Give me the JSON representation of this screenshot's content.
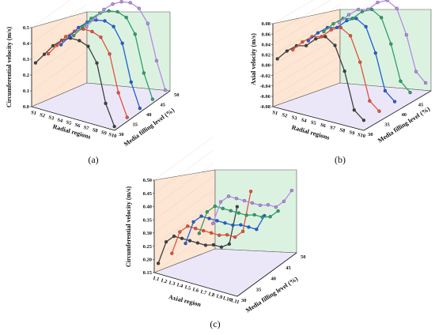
{
  "chart_data": [
    {
      "type": "line",
      "panel_label": "(a)",
      "zlabel": "Circumferential velocity (m/s)",
      "xlabel": "Radial regions",
      "ylabel": "Media filling level (%)",
      "x_ticks": [
        "S1",
        "S2",
        "S3",
        "S4",
        "S5",
        "S6",
        "S7",
        "S8",
        "S9",
        "S10"
      ],
      "y_ticks": [
        "30",
        "35",
        "40",
        "45",
        "50"
      ],
      "z_ticks": [
        "0.0",
        "0.1",
        "0.2",
        "0.3",
        "0.4",
        "0.5"
      ],
      "zlim": [
        0,
        0.5
      ],
      "series": [
        {
          "name": "30",
          "color": "#404040",
          "values": [
            0.27,
            0.34,
            0.41,
            0.46,
            0.49,
            0.49,
            0.47,
            0.38,
            0.14,
            0.01
          ]
        },
        {
          "name": "35",
          "color": "#e8503a",
          "values": [
            0.27,
            0.34,
            0.41,
            0.46,
            0.49,
            0.49,
            0.47,
            0.38,
            0.15,
            0.01
          ]
        },
        {
          "name": "40",
          "color": "#1f5fd6",
          "values": [
            0.27,
            0.34,
            0.41,
            0.46,
            0.49,
            0.5,
            0.48,
            0.39,
            0.16,
            0.01
          ]
        },
        {
          "name": "45",
          "color": "#2ea06a",
          "values": [
            0.27,
            0.34,
            0.41,
            0.46,
            0.49,
            0.5,
            0.48,
            0.39,
            0.16,
            0.01
          ]
        },
        {
          "name": "50",
          "color": "#b58be6",
          "values": [
            0.27,
            0.34,
            0.41,
            0.46,
            0.49,
            0.5,
            0.48,
            0.4,
            0.18,
            0.01
          ]
        }
      ]
    },
    {
      "type": "line",
      "panel_label": "(b)",
      "zlabel": "Axial velocity (m/s)",
      "xlabel": "Radial regions",
      "ylabel": "Media filling level (%)",
      "x_ticks": [
        "S1",
        "S2",
        "S3",
        "S4",
        "S5",
        "S6",
        "S7",
        "S8",
        "S9",
        "S10"
      ],
      "y_ticks": [
        "30",
        "35",
        "40",
        "45",
        "50"
      ],
      "z_ticks": [
        "-0.08",
        "-0.06",
        "-0.04",
        "-0.02",
        "0.00",
        "0.02",
        "0.04",
        "0.06",
        "0.08"
      ],
      "zlim": [
        -0.08,
        0.08
      ],
      "series": [
        {
          "name": "30",
          "color": "#404040",
          "values": [
            0.01,
            0.03,
            0.045,
            0.05,
            0.068,
            0.077,
            0.065,
            0.02,
            -0.05,
            -0.065
          ]
        },
        {
          "name": "35",
          "color": "#e8503a",
          "values": [
            0.01,
            0.03,
            0.045,
            0.05,
            0.068,
            0.077,
            0.066,
            0.02,
            -0.05,
            -0.065
          ]
        },
        {
          "name": "40",
          "color": "#1f5fd6",
          "values": [
            0.01,
            0.03,
            0.045,
            0.05,
            0.068,
            0.077,
            0.066,
            0.02,
            -0.048,
            -0.064
          ]
        },
        {
          "name": "45",
          "color": "#2ea06a",
          "values": [
            0.01,
            0.03,
            0.045,
            0.05,
            0.068,
            0.077,
            0.066,
            0.02,
            -0.047,
            -0.064
          ]
        },
        {
          "name": "50",
          "color": "#b58be6",
          "values": [
            0.01,
            0.03,
            0.045,
            0.05,
            0.068,
            0.077,
            0.066,
            0.02,
            -0.046,
            -0.063
          ]
        }
      ]
    },
    {
      "type": "line",
      "panel_label": "(c)",
      "zlabel": "Circumferential velocity (m/s)",
      "xlabel": "Axial region",
      "ylabel": "Media filling level (%)",
      "x_ticks": [
        "L1",
        "L2",
        "L3",
        "L4",
        "L5",
        "L6",
        "L7",
        "L8",
        "L9",
        "L10",
        "L11"
      ],
      "y_ticks": [
        "30",
        "35",
        "40",
        "45",
        "50"
      ],
      "z_ticks": [
        "0.15",
        "0.20",
        "0.25",
        "0.30",
        "0.35",
        "0.40",
        "0.45",
        "0.50"
      ],
      "zlim": [
        0.15,
        0.5
      ],
      "series": [
        {
          "name": "30",
          "color": "#404040",
          "values": [
            0.18,
            0.27,
            0.3,
            0.3,
            0.3,
            0.3,
            0.3,
            0.31,
            0.31,
            0.33,
            0.48
          ]
        },
        {
          "name": "35",
          "color": "#e8503a",
          "values": [
            0.18,
            0.27,
            0.3,
            0.3,
            0.3,
            0.3,
            0.3,
            0.31,
            0.31,
            0.34,
            0.5
          ]
        },
        {
          "name": "40",
          "color": "#1f5fd6",
          "values": [
            0.18,
            0.27,
            0.3,
            0.3,
            0.3,
            0.3,
            0.3,
            0.31,
            0.31,
            0.31,
            0.37
          ]
        },
        {
          "name": "45",
          "color": "#2ea06a",
          "values": [
            0.18,
            0.27,
            0.3,
            0.3,
            0.3,
            0.3,
            0.3,
            0.31,
            0.31,
            0.32,
            0.35
          ]
        },
        {
          "name": "50",
          "color": "#b58be6",
          "values": [
            0.18,
            0.27,
            0.3,
            0.3,
            0.3,
            0.3,
            0.3,
            0.31,
            0.31,
            0.34,
            0.39
          ]
        }
      ]
    }
  ]
}
